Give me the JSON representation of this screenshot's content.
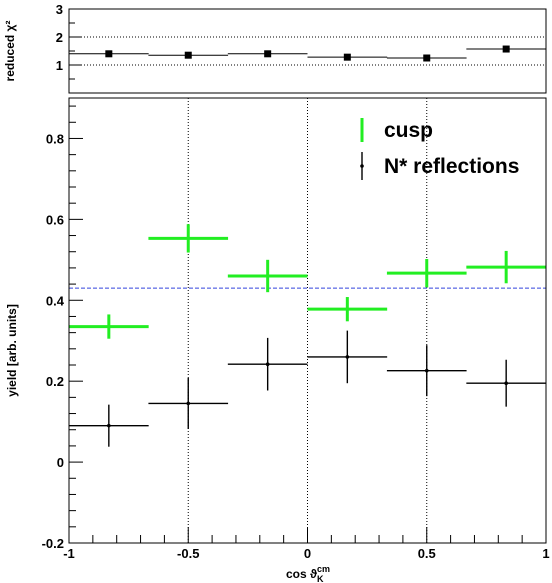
{
  "chart_data": [
    {
      "type": "scatter",
      "ylabel": "reduced χ²",
      "ylim": [
        0,
        3
      ],
      "xlim": [
        -1,
        1
      ],
      "yticks": [
        1,
        2,
        3
      ],
      "reference_lines": [
        1,
        2
      ],
      "series": [
        {
          "x": [
            -0.833,
            -0.5,
            -0.167,
            0.167,
            0.5,
            0.833
          ],
          "y": [
            1.4,
            1.35,
            1.4,
            1.28,
            1.25,
            1.57
          ],
          "xerr": 0.167
        }
      ]
    },
    {
      "type": "scatter",
      "xlabel": "cos ϑ",
      "xlabel_sup": "cm",
      "xlabel_sub": "K",
      "ylabel": "yield [arb. units]",
      "xlim": [
        -1,
        1
      ],
      "ylim": [
        -0.2,
        0.9
      ],
      "xticks": [
        -1,
        -0.5,
        0,
        0.5,
        1
      ],
      "xtick_labels": [
        "-1",
        "-0.5",
        "0",
        "0.5",
        "1"
      ],
      "yticks": [
        -0.2,
        0,
        0.2,
        0.4,
        0.6,
        0.8
      ],
      "ytick_labels": [
        "-0.2",
        "0",
        "0.2",
        "0.4",
        "0.6",
        "0.8"
      ],
      "grid_x": [
        -0.5,
        0,
        0.5
      ],
      "hline": 0.43,
      "legend_position": "top-right",
      "series": [
        {
          "name": "cusp",
          "color": "#22ee22",
          "x": [
            -0.833,
            -0.5,
            -0.167,
            0.167,
            0.5,
            0.833
          ],
          "y": [
            0.335,
            0.553,
            0.46,
            0.378,
            0.467,
            0.482
          ],
          "xerr": 0.167,
          "yerr": [
            0.03,
            0.035,
            0.04,
            0.03,
            0.035,
            0.04
          ]
        },
        {
          "name": "N* reflections",
          "color": "#000000",
          "x": [
            -0.833,
            -0.5,
            -0.167,
            0.167,
            0.5,
            0.833
          ],
          "y": [
            0.09,
            0.145,
            0.242,
            0.26,
            0.226,
            0.195
          ],
          "xerr": 0.167,
          "yerr": [
            0.052,
            0.063,
            0.065,
            0.065,
            0.063,
            0.058
          ]
        }
      ]
    }
  ]
}
